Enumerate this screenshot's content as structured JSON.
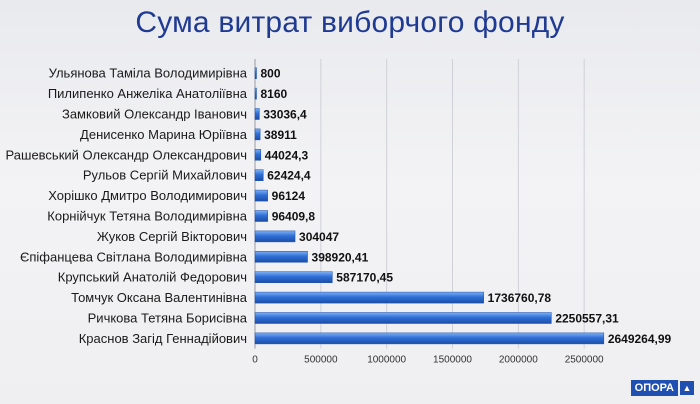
{
  "chart_data": {
    "type": "bar",
    "orientation": "horizontal",
    "title": "Сума витрат виборчого фонду",
    "categories": [
      "Ульянова Таміла Володимирівна",
      "Пилипенко Анжеліка Анатоліївна",
      "Замковий Олександр Іванович",
      "Денисенко Марина Юріївна",
      "Рашевський Олександр Олександрович",
      "Рульов Сергій Михайлович",
      "Хорішко Дмитро Володимирович",
      "Корнійчук Тетяна Володимирівна",
      "Жуков Сергій Вікторович",
      "Єпіфанцева Світлана Володимирівна",
      "Крупський Анатолій Федорович",
      "Томчук Оксана Валентинівна",
      "Ричкова Тетяна Борисівна",
      "Краснов Загід Геннадійович"
    ],
    "values": [
      800,
      8160,
      33036.4,
      38911,
      44024.3,
      62424.4,
      96124,
      96409.8,
      304047,
      398920.41,
      587170.45,
      1736760.78,
      2250557.31,
      2649264.99
    ],
    "value_labels": [
      "800",
      "8160",
      "33036,4",
      "38911",
      "44024,3",
      "62424,4",
      "96124",
      "96409,8",
      "304047",
      "398920,41",
      "587170,45",
      "1736760,78",
      "2250557,31",
      "2649264,99"
    ],
    "xlim": [
      0,
      3000000
    ],
    "x_ticks": [
      0,
      500000,
      1000000,
      1500000,
      2000000,
      2500000
    ],
    "grid": true,
    "legend": "none",
    "bar_color": "#2f6fd6",
    "bar_color_dark": "#1b4ea8"
  },
  "logo": {
    "text": "ОПОРА",
    "mark": "▲"
  }
}
